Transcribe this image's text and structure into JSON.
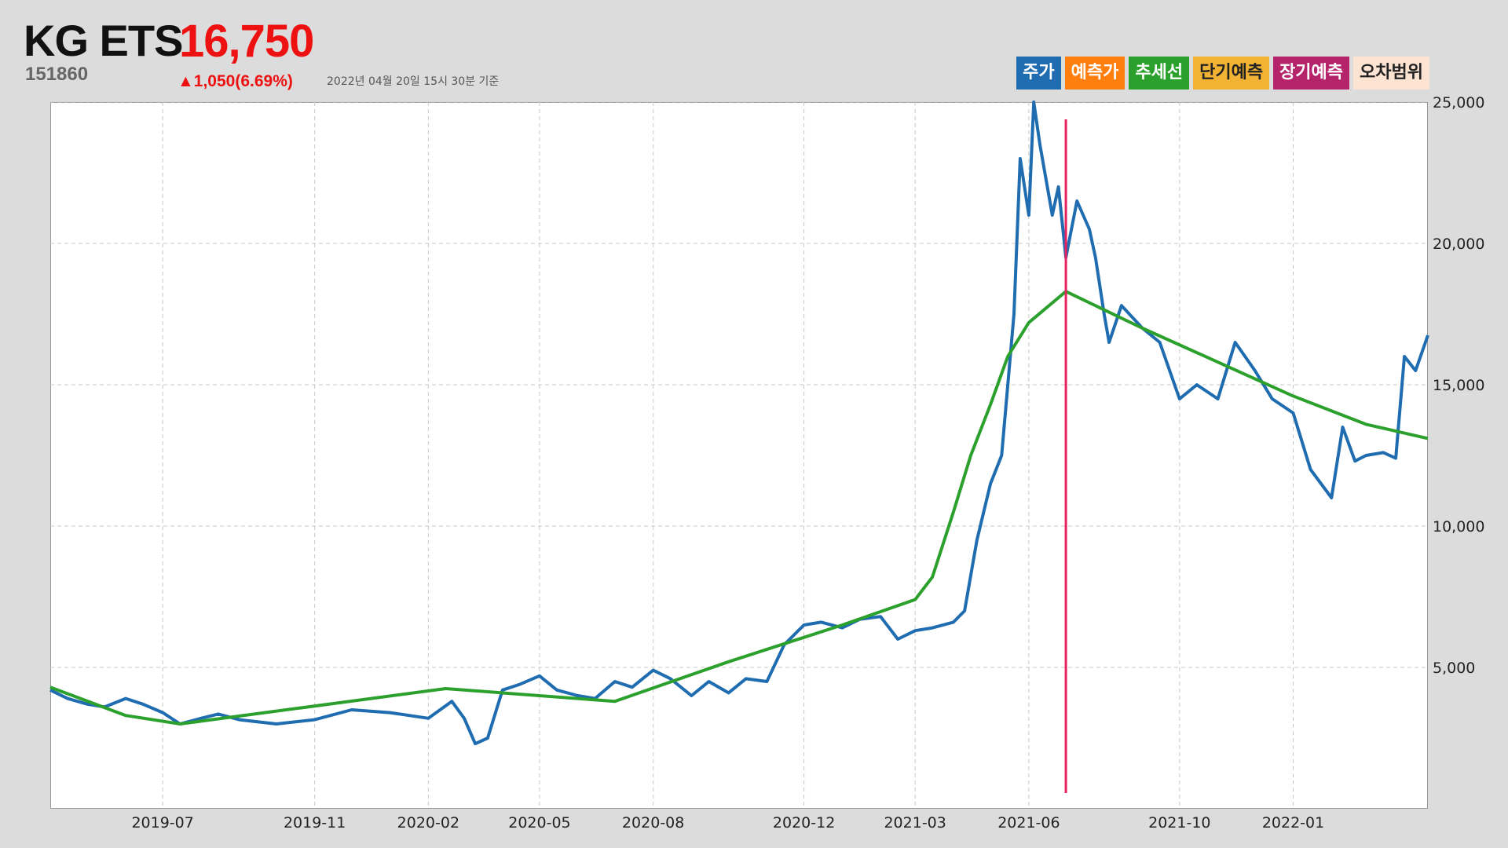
{
  "header": {
    "name": "KG ETS",
    "price": "16,750",
    "code": "151860",
    "change": "▲1,050(6.69%)",
    "asof": "2022년 04월 20일 15시 30분 기준"
  },
  "legend": [
    {
      "label": "주가",
      "color": "#1f6db0",
      "text_color": "#ffffff"
    },
    {
      "label": "예측가",
      "color": "#ff7f0e",
      "text_color": "#ffffff"
    },
    {
      "label": "추세선",
      "color": "#2ca02c",
      "text_color": "#ffffff"
    },
    {
      "label": "단기예측",
      "color": "#f2b233",
      "text_color": "#222222"
    },
    {
      "label": "장기예측",
      "color": "#b5246a",
      "text_color": "#ffffff"
    },
    {
      "label": "오차범위",
      "color": "#fde3d2",
      "text_color": "#222222"
    }
  ],
  "chart_data": {
    "type": "line",
    "title": "KG ETS",
    "xlabel": "",
    "ylabel": "",
    "x_range": [
      "2019-04-01",
      "2022-04-20"
    ],
    "ylim": [
      0,
      25000
    ],
    "y_ticks": [
      5000,
      10000,
      15000,
      20000,
      25000
    ],
    "y_tick_labels": [
      "5,000",
      "10,000",
      "15,000",
      "20,000",
      "25,000"
    ],
    "x_ticks": [
      "2019-07-01",
      "2019-11-01",
      "2020-02-01",
      "2020-05-01",
      "2020-08-01",
      "2020-12-01",
      "2021-03-01",
      "2021-06-01",
      "2021-10-01",
      "2022-01-01"
    ],
    "x_tick_labels": [
      "2019-07",
      "2019-11",
      "2020-02",
      "2020-05",
      "2020-08",
      "2020-12",
      "2021-03",
      "2021-06",
      "2021-10",
      "2022-01"
    ],
    "grid": true,
    "y_axis_side": "right",
    "series": [
      {
        "name": "주가",
        "color": "#1f6db0",
        "points": [
          [
            "2019-04-01",
            4200
          ],
          [
            "2019-04-15",
            3900
          ],
          [
            "2019-05-01",
            3700
          ],
          [
            "2019-05-15",
            3600
          ],
          [
            "2019-06-01",
            3900
          ],
          [
            "2019-06-15",
            3700
          ],
          [
            "2019-07-01",
            3400
          ],
          [
            "2019-07-15",
            3000
          ],
          [
            "2019-08-01",
            3200
          ],
          [
            "2019-08-15",
            3350
          ],
          [
            "2019-09-01",
            3150
          ],
          [
            "2019-10-01",
            3000
          ],
          [
            "2019-11-01",
            3150
          ],
          [
            "2019-12-01",
            3500
          ],
          [
            "2020-01-01",
            3400
          ],
          [
            "2020-02-01",
            3200
          ],
          [
            "2020-02-20",
            3800
          ],
          [
            "2020-03-01",
            3200
          ],
          [
            "2020-03-10",
            2300
          ],
          [
            "2020-03-20",
            2500
          ],
          [
            "2020-04-01",
            4200
          ],
          [
            "2020-04-15",
            4400
          ],
          [
            "2020-05-01",
            4700
          ],
          [
            "2020-05-15",
            4200
          ],
          [
            "2020-06-01",
            4000
          ],
          [
            "2020-06-15",
            3900
          ],
          [
            "2020-07-01",
            4500
          ],
          [
            "2020-07-15",
            4300
          ],
          [
            "2020-08-01",
            4900
          ],
          [
            "2020-08-15",
            4600
          ],
          [
            "2020-09-01",
            4000
          ],
          [
            "2020-09-15",
            4500
          ],
          [
            "2020-10-01",
            4100
          ],
          [
            "2020-10-15",
            4600
          ],
          [
            "2020-11-01",
            4500
          ],
          [
            "2020-11-15",
            5800
          ],
          [
            "2020-12-01",
            6500
          ],
          [
            "2020-12-15",
            6600
          ],
          [
            "2021-01-01",
            6400
          ],
          [
            "2021-01-15",
            6700
          ],
          [
            "2021-02-01",
            6800
          ],
          [
            "2021-02-15",
            6000
          ],
          [
            "2021-03-01",
            6300
          ],
          [
            "2021-03-15",
            6400
          ],
          [
            "2021-04-01",
            6600
          ],
          [
            "2021-04-10",
            7000
          ],
          [
            "2021-04-20",
            9500
          ],
          [
            "2021-05-01",
            11500
          ],
          [
            "2021-05-10",
            12500
          ],
          [
            "2021-05-20",
            17500
          ],
          [
            "2021-05-25",
            23000
          ],
          [
            "2021-06-01",
            21000
          ],
          [
            "2021-06-05",
            25000
          ],
          [
            "2021-06-10",
            23500
          ],
          [
            "2021-06-20",
            21000
          ],
          [
            "2021-06-25",
            22000
          ],
          [
            "2021-07-01",
            19500
          ],
          [
            "2021-07-10",
            21500
          ],
          [
            "2021-07-20",
            20500
          ],
          [
            "2021-07-25",
            19500
          ],
          [
            "2021-08-01",
            17500
          ],
          [
            "2021-08-05",
            16500
          ],
          [
            "2021-08-15",
            17800
          ],
          [
            "2021-09-01",
            17000
          ],
          [
            "2021-09-15",
            16500
          ],
          [
            "2021-10-01",
            14500
          ],
          [
            "2021-10-15",
            15000
          ],
          [
            "2021-11-01",
            14500
          ],
          [
            "2021-11-15",
            16500
          ],
          [
            "2021-12-01",
            15500
          ],
          [
            "2021-12-15",
            14500
          ],
          [
            "2022-01-01",
            14000
          ],
          [
            "2022-01-15",
            12000
          ],
          [
            "2022-02-01",
            11000
          ],
          [
            "2022-02-10",
            13500
          ],
          [
            "2022-02-20",
            12300
          ],
          [
            "2022-03-01",
            12500
          ],
          [
            "2022-03-15",
            12600
          ],
          [
            "2022-03-25",
            12400
          ],
          [
            "2022-04-01",
            16000
          ],
          [
            "2022-04-10",
            15500
          ],
          [
            "2022-04-20",
            16750
          ]
        ]
      },
      {
        "name": "추세선",
        "color": "#2ca02c",
        "points": [
          [
            "2019-04-01",
            4300
          ],
          [
            "2019-06-01",
            3300
          ],
          [
            "2019-07-15",
            3000
          ],
          [
            "2020-02-15",
            4250
          ],
          [
            "2020-07-01",
            3800
          ],
          [
            "2020-10-01",
            5200
          ],
          [
            "2021-01-01",
            6500
          ],
          [
            "2021-03-01",
            7400
          ],
          [
            "2021-03-15",
            8200
          ],
          [
            "2021-04-01",
            10500
          ],
          [
            "2021-04-15",
            12500
          ],
          [
            "2021-05-01",
            14300
          ],
          [
            "2021-05-15",
            16000
          ],
          [
            "2021-06-01",
            17200
          ],
          [
            "2021-07-01",
            18300
          ],
          [
            "2021-09-01",
            17000
          ],
          [
            "2021-11-01",
            15800
          ],
          [
            "2022-01-01",
            14600
          ],
          [
            "2022-03-01",
            13600
          ],
          [
            "2022-04-20",
            13100
          ]
        ]
      }
    ],
    "marker_line": {
      "date": "2021-07-01",
      "color": "#e8215e"
    }
  }
}
